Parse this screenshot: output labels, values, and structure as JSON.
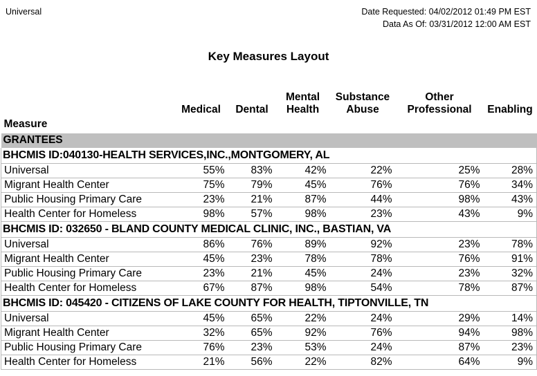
{
  "top": {
    "left_text": "Universal",
    "date_requested": "Date Requested: 04/02/2012 01:49 PM EST",
    "data_as_of": "Data As Of: 03/31/2012 12:00 AM EST"
  },
  "title": "Key Measures Layout",
  "table": {
    "measure_header": "Measure",
    "columns": [
      "Medical",
      "Dental",
      "Mental\nHealth",
      "Substance\nAbuse",
      "Other\nProfessional",
      "Enabling"
    ],
    "section_header": "GRANTEES",
    "grantees": [
      {
        "id_line": "BHCMIS ID:040130-HEALTH SERVICES,INC.,MONTGOMERY, AL",
        "rows": [
          {
            "measure": "Universal",
            "values": [
              "55%",
              "83%",
              "42%",
              "22%",
              "25%",
              "28%"
            ]
          },
          {
            "measure": "Migrant Health Center",
            "values": [
              "75%",
              "79%",
              "45%",
              "76%",
              "76%",
              "34%"
            ]
          },
          {
            "measure": "Public Housing Primary Care",
            "values": [
              "23%",
              "21%",
              "87%",
              "44%",
              "98%",
              "43%"
            ]
          },
          {
            "measure": "Health Center for Homeless",
            "values": [
              "98%",
              "57%",
              "98%",
              "23%",
              "43%",
              "9%"
            ]
          }
        ]
      },
      {
        "id_line": "BHCMIS ID: 032650 - BLAND COUNTY MEDICAL CLINIC, INC., BASTIAN, VA",
        "rows": [
          {
            "measure": "Universal",
            "values": [
              "86%",
              "76%",
              "89%",
              "92%",
              "23%",
              "78%"
            ]
          },
          {
            "measure": "Migrant Health Center",
            "values": [
              "45%",
              "23%",
              "78%",
              "78%",
              "76%",
              "91%"
            ]
          },
          {
            "measure": "Public Housing Primary Care",
            "values": [
              "23%",
              "21%",
              "45%",
              "24%",
              "23%",
              "32%"
            ]
          },
          {
            "measure": "Health Center for Homeless",
            "values": [
              "67%",
              "87%",
              "98%",
              "54%",
              "78%",
              "87%"
            ]
          }
        ]
      },
      {
        "id_line": "BHCMIS ID: 045420 - CITIZENS OF LAKE COUNTY FOR HEALTH, TIPTONVILLE, TN",
        "rows": [
          {
            "measure": "Universal",
            "values": [
              "45%",
              "65%",
              "22%",
              "24%",
              "29%",
              "14%"
            ]
          },
          {
            "measure": "Migrant Health Center",
            "values": [
              "32%",
              "65%",
              "92%",
              "76%",
              "94%",
              "98%"
            ]
          },
          {
            "measure": "Public Housing Primary Care",
            "values": [
              "76%",
              "23%",
              "53%",
              "24%",
              "87%",
              "23%"
            ]
          },
          {
            "measure": "Health Center for Homeless",
            "values": [
              "21%",
              "56%",
              "22%",
              "82%",
              "64%",
              "9%"
            ]
          }
        ]
      }
    ]
  },
  "colors": {
    "section_band": "#bfbfbf",
    "row_border": "#b9b9b9",
    "text": "#000000"
  }
}
